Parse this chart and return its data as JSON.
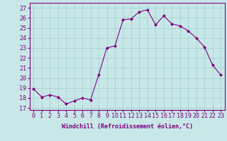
{
  "x": [
    0,
    1,
    2,
    3,
    4,
    5,
    6,
    7,
    8,
    9,
    10,
    11,
    12,
    13,
    14,
    15,
    16,
    17,
    18,
    19,
    20,
    21,
    22,
    23
  ],
  "y": [
    18.9,
    18.1,
    18.3,
    18.1,
    17.4,
    17.7,
    18.0,
    17.8,
    20.3,
    23.0,
    23.2,
    25.8,
    25.9,
    26.6,
    26.8,
    25.3,
    26.2,
    25.4,
    25.2,
    24.7,
    24.0,
    23.1,
    21.3,
    20.3
  ],
  "line_color": "#800080",
  "marker": "D",
  "marker_size": 2,
  "bg_color": "#c8e8e8",
  "grid_color": "#a0cccc",
  "xlabel": "Windchill (Refroidissement éolien,°C)",
  "xlabel_fontsize": 6,
  "xtick_labels": [
    "0",
    "1",
    "2",
    "3",
    "4",
    "5",
    "6",
    "7",
    "8",
    "9",
    "10",
    "11",
    "12",
    "13",
    "14",
    "15",
    "16",
    "17",
    "18",
    "19",
    "20",
    "21",
    "22",
    "23"
  ],
  "ytick_values": [
    17,
    18,
    19,
    20,
    21,
    22,
    23,
    24,
    25,
    26,
    27
  ],
  "ylim": [
    16.8,
    27.5
  ],
  "xlim": [
    -0.5,
    23.5
  ],
  "tick_fontsize": 6
}
